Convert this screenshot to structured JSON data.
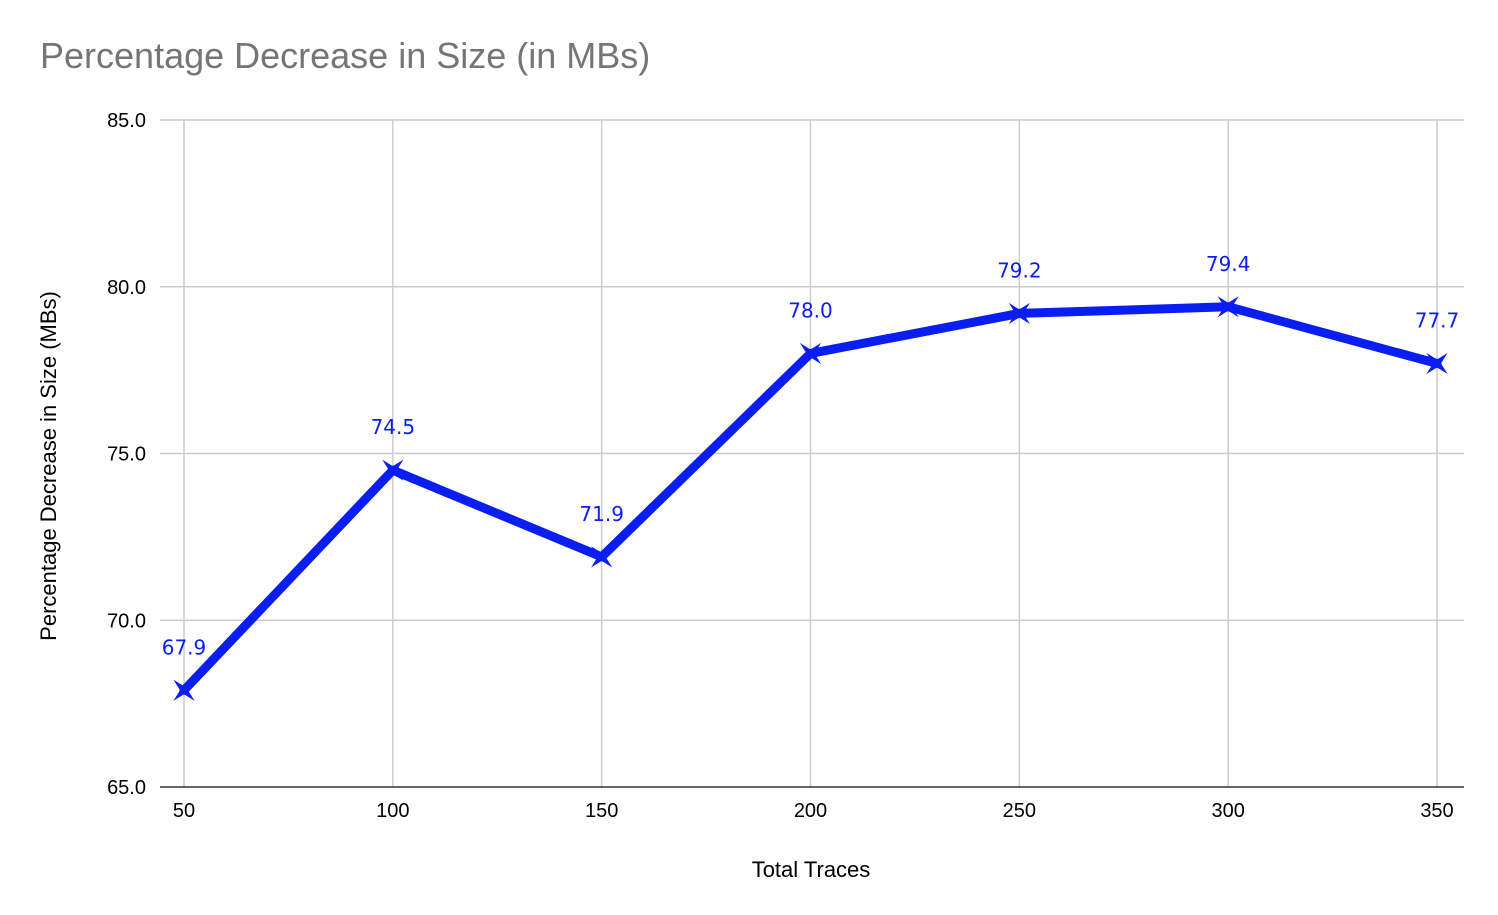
{
  "chart_data": {
    "type": "line",
    "title": "Percentage Decrease in Size (in MBs)",
    "xlabel": "Total Traces",
    "ylabel": "Percentage Decrease in Size (MBs)",
    "x": [
      50,
      100,
      150,
      200,
      250,
      300,
      350
    ],
    "x_tick_labels": [
      "50",
      "100",
      "150",
      "200",
      "250",
      "300",
      "350"
    ],
    "series": [
      {
        "values": [
          67.9,
          74.5,
          71.9,
          78.0,
          79.2,
          79.4,
          77.7
        ],
        "data_labels": [
          "67.9",
          "74.5",
          "71.9",
          "78.0",
          "79.2",
          "79.4",
          "77.7"
        ],
        "color": "#0a1ef2",
        "marker": "star-cross"
      }
    ],
    "ylim": [
      65,
      85
    ],
    "y_ticks": [
      65,
      70,
      75,
      80,
      85
    ],
    "y_tick_labels": [
      "65.0",
      "70.0",
      "75.0",
      "80.0",
      "85.0"
    ],
    "grid": true,
    "legend": "none",
    "gridline_color": "#cccccc",
    "axis_color": "#333333"
  }
}
